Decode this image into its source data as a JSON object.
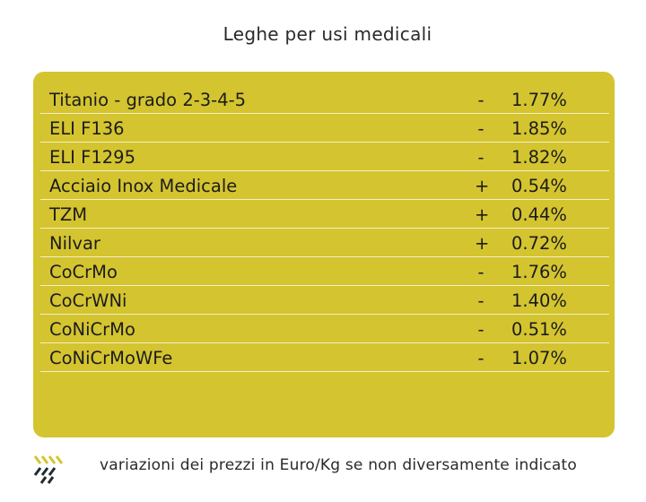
{
  "title": "Leghe per usi medicali",
  "rows": [
    {
      "name": "Titanio - grado 2-3-4-5",
      "sign": "-",
      "value": "1.77%"
    },
    {
      "name": "ELI F136",
      "sign": "-",
      "value": "1.85%"
    },
    {
      "name": "ELI F1295",
      "sign": "-",
      "value": "1.82%"
    },
    {
      "name": "Acciaio Inox Medicale",
      "sign": "+",
      "value": "0.54%"
    },
    {
      "name": "TZM",
      "sign": "+",
      "value": "0.44%"
    },
    {
      "name": "Nilvar",
      "sign": "+",
      "value": "0.72%"
    },
    {
      "name": "CoCrMo",
      "sign": "-",
      "value": "1.76%"
    },
    {
      "name": "CoCrWNi",
      "sign": "-",
      "value": "1.40%"
    },
    {
      "name": "CoNiCrMo",
      "sign": "-",
      "value": "0.51%"
    },
    {
      "name": "CoNiCrMoWFe",
      "sign": "-",
      "value": "1.07%"
    }
  ],
  "footer_note": "variazioni dei prezzi in Euro/Kg se non diversamente indicato",
  "colors": {
    "panel": "#d4c430",
    "logo_accent": "#d4c430",
    "logo_dark": "#1f2b33"
  },
  "logo_icon": "stripes-logo-icon"
}
